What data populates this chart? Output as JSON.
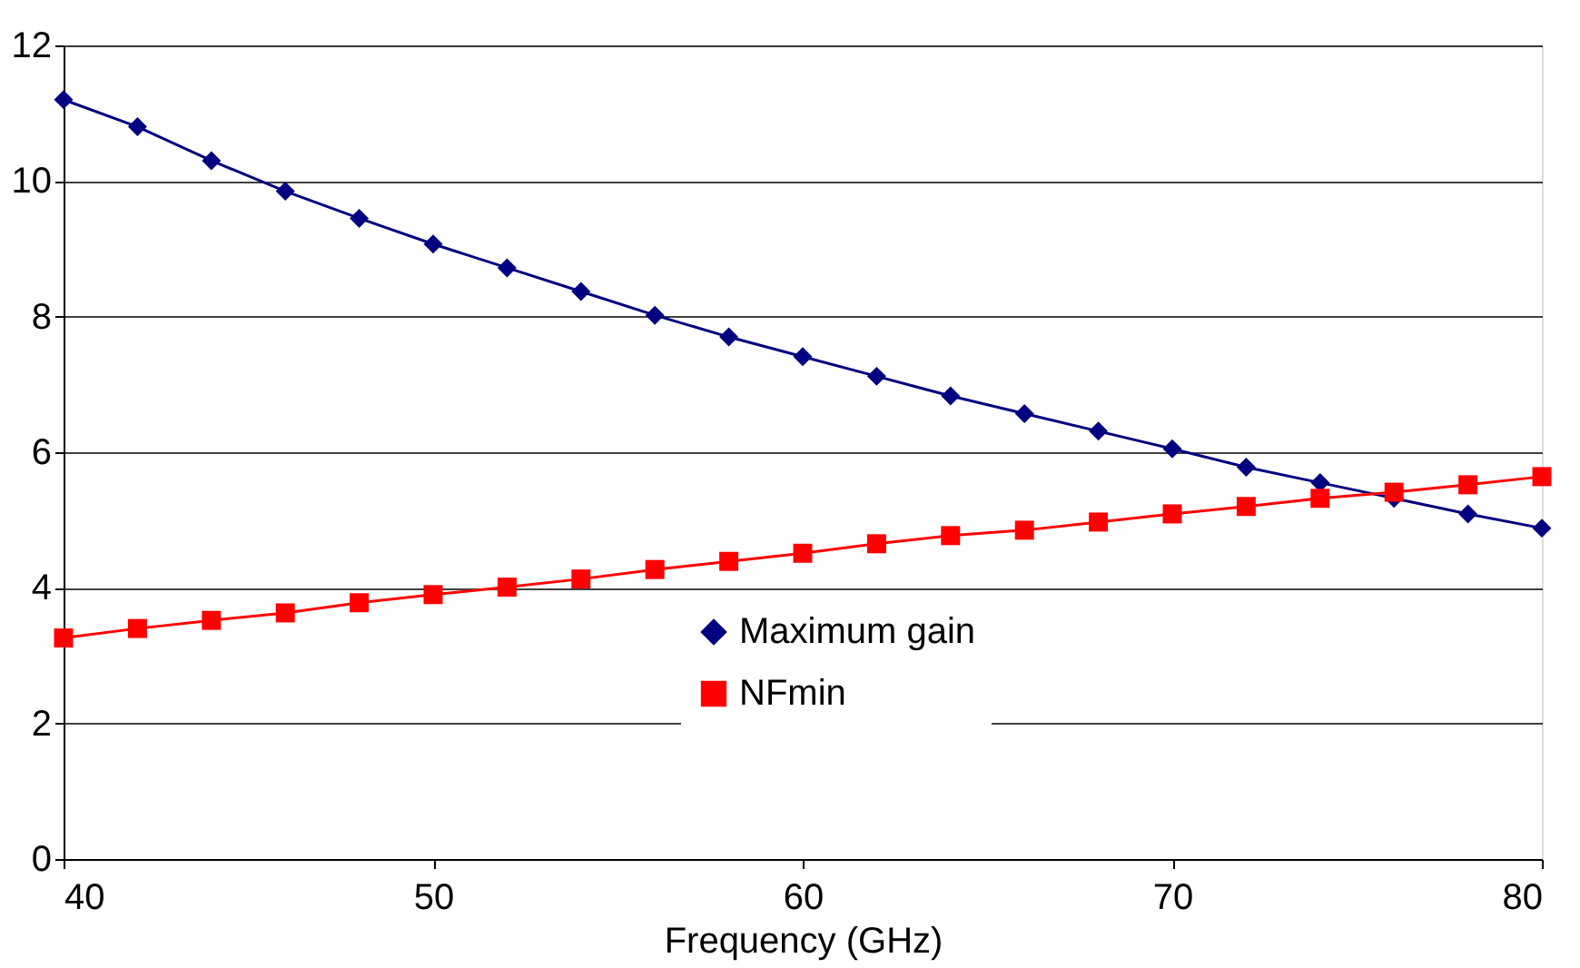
{
  "chart_data": {
    "type": "line",
    "xlabel": "Frequency (GHz)",
    "x": [
      40,
      42,
      44,
      46,
      48,
      50,
      52,
      54,
      56,
      58,
      60,
      62,
      64,
      66,
      68,
      70,
      72,
      74,
      76,
      78,
      80
    ],
    "series": [
      {
        "name": "Maximum gain",
        "color": "#000080",
        "marker": "diamond",
        "values": [
          11.2,
          10.8,
          10.3,
          9.85,
          9.45,
          9.07,
          8.72,
          8.37,
          8.02,
          7.7,
          7.41,
          7.12,
          6.83,
          6.57,
          6.31,
          6.05,
          5.78,
          5.55,
          5.32,
          5.09,
          4.88
        ]
      },
      {
        "name": "NFmin",
        "color": "#ff0000",
        "marker": "square",
        "values": [
          3.26,
          3.4,
          3.52,
          3.63,
          3.78,
          3.9,
          4.01,
          4.13,
          4.27,
          4.39,
          4.51,
          4.65,
          4.77,
          4.85,
          4.97,
          5.09,
          5.2,
          5.32,
          5.41,
          5.52,
          5.64
        ]
      }
    ],
    "xlim": [
      40,
      80
    ],
    "xticks": [
      40,
      50,
      60,
      70,
      80
    ],
    "ylim": [
      0,
      12
    ],
    "yticks": [
      0,
      2,
      4,
      6,
      8,
      10,
      12
    ],
    "grid": "y",
    "legend": "bottom",
    "line_style": "solid"
  }
}
